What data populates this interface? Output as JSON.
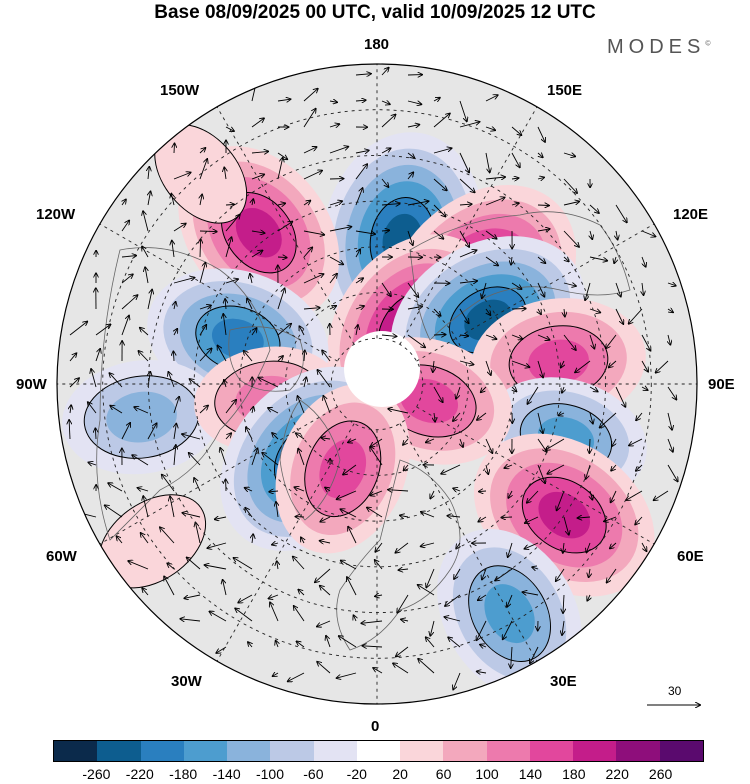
{
  "title": "Base 08/09/2025 00 UTC, valid 10/09/2025 12 UTC",
  "brand": "MODES",
  "brand_mark": "©",
  "longitude_labels": {
    "top": "180",
    "bottom": "0",
    "left": "90W",
    "right": "90E",
    "upper_left_1": "150W",
    "upper_left_2": "120W",
    "upper_right_1": "150E",
    "upper_right_2": "120E",
    "lower_left_1": "60W",
    "lower_left_2": "30W",
    "lower_right_1": "60E",
    "lower_right_2": "30E"
  },
  "wind_scale": {
    "label": "30"
  },
  "colorbar": {
    "colors": [
      "#0b2a4b",
      "#0d5d8f",
      "#2a7fbf",
      "#4d9dcf",
      "#8ab3dc",
      "#bcc9e6",
      "#e3e3f3",
      "#ffffff",
      "#fad6da",
      "#f3a8bd",
      "#ed7aad",
      "#e2479d",
      "#c41d8a",
      "#8e0e7b",
      "#5a0a6e"
    ],
    "tick_labels": [
      "-260",
      "-220",
      "-180",
      "-140",
      "-100",
      "-60",
      "-20",
      "20",
      "60",
      "100",
      "140",
      "180",
      "220",
      "260"
    ]
  },
  "anomaly_centers": [
    {
      "lon": 170,
      "lat": 58,
      "value": -240
    },
    {
      "lon": 135,
      "lat": 58,
      "value": 240
    },
    {
      "lon": 147,
      "lat": 76,
      "value": 220
    },
    {
      "lon": 120,
      "lat": 62,
      "value": -220
    },
    {
      "lon": 97,
      "lat": 50,
      "value": 160
    },
    {
      "lon": 74,
      "lat": 47,
      "value": -140
    },
    {
      "lon": 55,
      "lat": 40,
      "value": 200
    },
    {
      "lon": 30,
      "lat": 32,
      "value": -170
    },
    {
      "lon": 72,
      "lat": 78,
      "value": 150
    },
    {
      "lon": -142,
      "lat": 48,
      "value": 190
    },
    {
      "lon": -108,
      "lat": 58,
      "value": -180
    },
    {
      "lon": -82,
      "lat": 38,
      "value": -130
    },
    {
      "lon": -82,
      "lat": 66,
      "value": 110
    },
    {
      "lon": -42,
      "lat": 68,
      "value": -220
    },
    {
      "lon": -22,
      "lat": 70,
      "value": 160
    },
    {
      "lon": -55,
      "lat": 30,
      "value": 50
    },
    {
      "lon": -140,
      "lat": 30,
      "value": 40
    }
  ]
}
